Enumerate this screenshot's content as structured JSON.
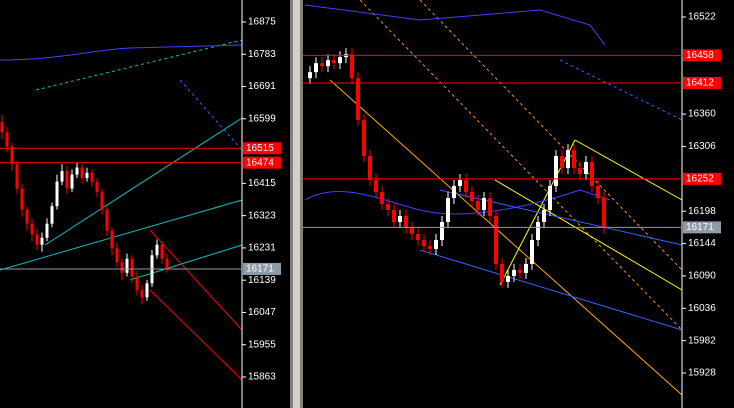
{
  "chart_data": [
    {
      "type": "candlestick",
      "up_color": "#ffffff",
      "down_color": "#ff0000",
      "ylim": [
        15774.6,
        16937.7
      ],
      "yticks": [
        16875,
        16783,
        16691,
        16599,
        16415,
        16323,
        16231,
        16139,
        16047,
        15955,
        15863
      ],
      "levels": [
        {
          "value": 16515,
          "color": "#ff0000"
        },
        {
          "value": 16474,
          "color": "#ff0000"
        },
        {
          "value": 16171,
          "color": "#8f9aa8"
        }
      ],
      "open": [
        16590,
        16560,
        16520,
        16470,
        16400,
        16340,
        16300,
        16270,
        16240,
        16260,
        16300,
        16350,
        16420,
        16450,
        16400,
        16440,
        16460,
        16430,
        16445,
        16420,
        16390,
        16340,
        16280,
        16230,
        16190,
        16160,
        16200,
        16150,
        16110,
        16090,
        16130,
        16210,
        16240,
        16200
      ],
      "high": [
        16610,
        16575,
        16530,
        16480,
        16415,
        16350,
        16315,
        16285,
        16275,
        16315,
        16360,
        16440,
        16470,
        16465,
        16455,
        16475,
        16470,
        16460,
        16455,
        16430,
        16400,
        16350,
        16290,
        16245,
        16200,
        16215,
        16210,
        16165,
        16125,
        16140,
        16225,
        16255,
        16250,
        16215
      ],
      "low": [
        16540,
        16505,
        16450,
        16385,
        16320,
        16280,
        16250,
        16225,
        16220,
        16250,
        16290,
        16340,
        16410,
        16385,
        16390,
        16430,
        16415,
        16420,
        16405,
        16375,
        16325,
        16265,
        16210,
        16175,
        16140,
        16150,
        16130,
        16095,
        16070,
        16080,
        16120,
        16200,
        16185,
        16160
      ],
      "close": [
        16560,
        16520,
        16470,
        16400,
        16340,
        16300,
        16270,
        16240,
        16260,
        16300,
        16350,
        16420,
        16450,
        16400,
        16440,
        16460,
        16430,
        16445,
        16420,
        16390,
        16340,
        16280,
        16230,
        16190,
        16160,
        16200,
        16150,
        16110,
        16090,
        16130,
        16210,
        16240,
        16200,
        16171
      ]
    },
    {
      "type": "candlestick",
      "up_color": "#ffffff",
      "down_color": "#ff0000",
      "ylim": [
        15869.6,
        16550.4
      ],
      "yticks": [
        16522,
        16360,
        16306,
        16198,
        16144,
        16090,
        16036,
        15982,
        15928
      ],
      "levels": [
        {
          "value": 16458,
          "color": "#ff0000"
        },
        {
          "value": 16412,
          "color": "#ff0000"
        },
        {
          "value": 16252,
          "color": "#ff0000"
        },
        {
          "value": 16171,
          "color": "#8f9aa8"
        }
      ],
      "open": [
        16420,
        16430,
        16445,
        16440,
        16450,
        16445,
        16455,
        16460,
        16420,
        16350,
        16290,
        16250,
        16230,
        16210,
        16200,
        16180,
        16190,
        16170,
        16160,
        16150,
        16140,
        16135,
        16150,
        16180,
        16220,
        16240,
        16250,
        16230,
        16215,
        16200,
        16220,
        16190,
        16110,
        16080,
        16090,
        16100,
        16095,
        16110,
        16150,
        16180,
        16200,
        16240,
        16290,
        16270,
        16300,
        16270,
        16260,
        16280,
        16240,
        16220
      ],
      "high": [
        16440,
        16455,
        16455,
        16460,
        16460,
        16465,
        16470,
        16470,
        16430,
        16360,
        16300,
        16260,
        16240,
        16220,
        16210,
        16200,
        16200,
        16180,
        16170,
        16160,
        16150,
        16160,
        16190,
        16230,
        16250,
        16260,
        16260,
        16240,
        16225,
        16230,
        16230,
        16200,
        16120,
        16100,
        16110,
        16110,
        16120,
        16160,
        16190,
        16210,
        16250,
        16300,
        16300,
        16310,
        16310,
        16280,
        16290,
        16290,
        16250,
        16230
      ],
      "low": [
        16410,
        16420,
        16430,
        16430,
        16435,
        16435,
        16445,
        16410,
        16340,
        16280,
        16240,
        16220,
        16200,
        16190,
        16170,
        16170,
        16160,
        16150,
        16140,
        16130,
        16125,
        16125,
        16140,
        16170,
        16210,
        16230,
        16220,
        16205,
        16190,
        16190,
        16180,
        16100,
        16070,
        16070,
        16080,
        16085,
        16085,
        16100,
        16140,
        16170,
        16190,
        16230,
        16260,
        16260,
        16260,
        16250,
        16250,
        16230,
        16210,
        16160
      ],
      "close": [
        16430,
        16445,
        16440,
        16450,
        16445,
        16455,
        16460,
        16420,
        16350,
        16290,
        16250,
        16230,
        16210,
        16200,
        16180,
        16190,
        16170,
        16160,
        16150,
        16140,
        16135,
        16150,
        16180,
        16220,
        16240,
        16250,
        16230,
        16215,
        16200,
        16220,
        16190,
        16110,
        16080,
        16090,
        16100,
        16095,
        16110,
        16150,
        16180,
        16200,
        16240,
        16290,
        16270,
        16300,
        16270,
        16260,
        16280,
        16240,
        16220,
        16171
      ]
    }
  ]
}
